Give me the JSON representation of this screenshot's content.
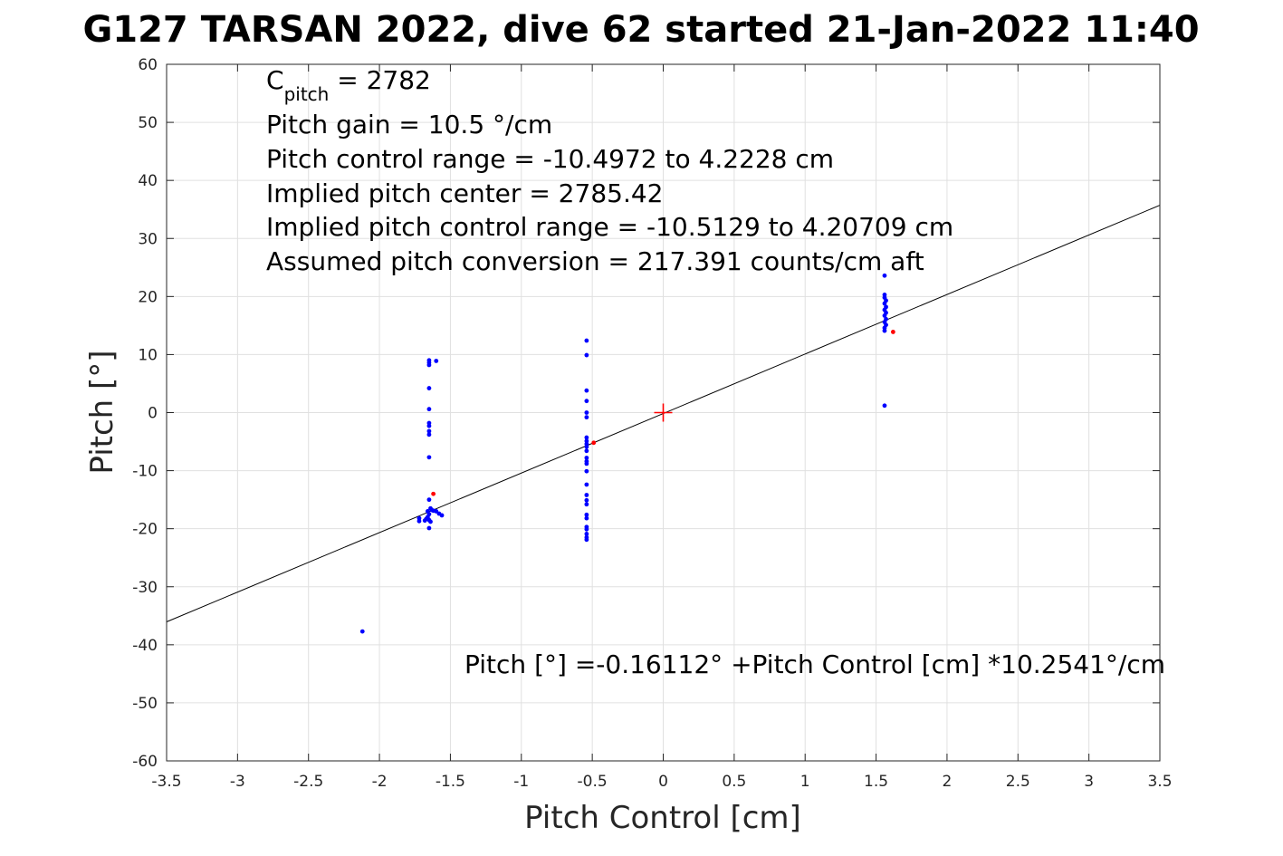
{
  "chart_data": {
    "type": "scatter",
    "title": "G127 TARSAN 2022, dive 62 started 21-Jan-2022 11:40",
    "xlabel": "Pitch Control [cm]",
    "ylabel": "Pitch [°]",
    "xlim": [
      -3.5,
      3.5
    ],
    "ylim": [
      -60,
      60
    ],
    "xticks": [
      -3.5,
      -3,
      -2.5,
      -2,
      -1.5,
      -1,
      -0.5,
      0,
      0.5,
      1,
      1.5,
      2,
      2.5,
      3,
      3.5
    ],
    "yticks": [
      60,
      50,
      40,
      30,
      20,
      10,
      0,
      -10,
      -20,
      -30,
      -40,
      -50,
      -60
    ],
    "xtick_labels": [
      "-3.5",
      "-3",
      "-2.5",
      "-2",
      "-1.5",
      "-1",
      "-0.5",
      "0",
      "0.5",
      "1",
      "1.5",
      "2",
      "2.5",
      "3",
      "3.5"
    ],
    "ytick_labels": [
      "60",
      "50",
      "40",
      "30",
      "20",
      "10",
      "0",
      "-10",
      "-20",
      "-30",
      "-40",
      "-50",
      "-60"
    ],
    "grid": true,
    "annotations": {
      "c_pitch_main": "C",
      "c_pitch_sub": "pitch",
      "c_pitch_value": " = 2782",
      "lines": [
        "Pitch gain = 10.5 °/cm",
        "Pitch control range = -10.4972 to 4.2228 cm",
        "Implied pitch center = 2785.42",
        "Implied pitch control range = -10.5129 to 4.20709 cm",
        "Assumed pitch conversion = 217.391 counts/cm aft"
      ],
      "fit_equation": "Pitch [°] =-0.16112° +Pitch Control [cm] *10.2541°/cm"
    },
    "fit_line": {
      "intercept": -0.16112,
      "slope": 10.2541,
      "color": "#000000"
    },
    "center_marker": {
      "x": 0,
      "y": 0,
      "color": "#ff0000"
    },
    "series": [
      {
        "color": "#0000ff",
        "points": [
          [
            -2.12,
            -37.7
          ],
          [
            -1.65,
            9.0
          ],
          [
            -1.65,
            8.6
          ],
          [
            -1.65,
            8.2
          ],
          [
            -1.6,
            8.9
          ],
          [
            -1.65,
            4.2
          ],
          [
            -1.65,
            0.6
          ],
          [
            -1.65,
            -1.8
          ],
          [
            -1.65,
            -2.3
          ],
          [
            -1.65,
            -3.2
          ],
          [
            -1.65,
            -3.8
          ],
          [
            -1.65,
            -7.7
          ],
          [
            -1.65,
            -15.0
          ],
          [
            -1.64,
            -16.5
          ],
          [
            -1.66,
            -17.0
          ],
          [
            -1.63,
            -16.8
          ],
          [
            -1.65,
            -17.5
          ],
          [
            -1.66,
            -18.0
          ],
          [
            -1.65,
            -18.5
          ],
          [
            -1.64,
            -18.8
          ],
          [
            -1.67,
            -18.3
          ],
          [
            -1.68,
            -18.6
          ],
          [
            -1.72,
            -18.2
          ],
          [
            -1.72,
            -18.7
          ],
          [
            -1.6,
            -17.0
          ],
          [
            -1.58,
            -17.4
          ],
          [
            -1.56,
            -17.7
          ],
          [
            -1.62,
            -16.9
          ],
          [
            -1.65,
            -19.9
          ],
          [
            -0.54,
            12.4
          ],
          [
            -0.54,
            9.9
          ],
          [
            -0.54,
            3.8
          ],
          [
            -0.54,
            2.0
          ],
          [
            -0.54,
            0.0
          ],
          [
            -0.54,
            -0.8
          ],
          [
            -0.54,
            -4.3
          ],
          [
            -0.54,
            -4.9
          ],
          [
            -0.54,
            -5.4
          ],
          [
            -0.54,
            -5.9
          ],
          [
            -0.54,
            -6.6
          ],
          [
            -0.54,
            -7.8
          ],
          [
            -0.54,
            -8.4
          ],
          [
            -0.54,
            -8.8
          ],
          [
            -0.54,
            -10.1
          ],
          [
            -0.54,
            -12.4
          ],
          [
            -0.54,
            -14.2
          ],
          [
            -0.54,
            -15.1
          ],
          [
            -0.54,
            -15.8
          ],
          [
            -0.54,
            -17.6
          ],
          [
            -0.54,
            -18.2
          ],
          [
            -0.54,
            -19.7
          ],
          [
            -0.54,
            -20.1
          ],
          [
            -0.54,
            -20.9
          ],
          [
            -0.54,
            -21.5
          ],
          [
            -0.54,
            -21.9
          ],
          [
            1.56,
            23.6
          ],
          [
            1.56,
            20.3
          ],
          [
            1.56,
            19.8
          ],
          [
            1.57,
            19.3
          ],
          [
            1.56,
            18.8
          ],
          [
            1.57,
            18.2
          ],
          [
            1.56,
            17.7
          ],
          [
            1.57,
            17.2
          ],
          [
            1.56,
            16.7
          ],
          [
            1.57,
            16.1
          ],
          [
            1.56,
            15.6
          ],
          [
            1.57,
            15.1
          ],
          [
            1.56,
            14.6
          ],
          [
            1.56,
            14.1
          ],
          [
            1.56,
            1.2
          ]
        ]
      },
      {
        "color": "#ff0000",
        "points": [
          [
            -1.62,
            -14.0
          ],
          [
            -0.49,
            -5.2
          ],
          [
            1.62,
            13.9
          ]
        ]
      }
    ]
  }
}
